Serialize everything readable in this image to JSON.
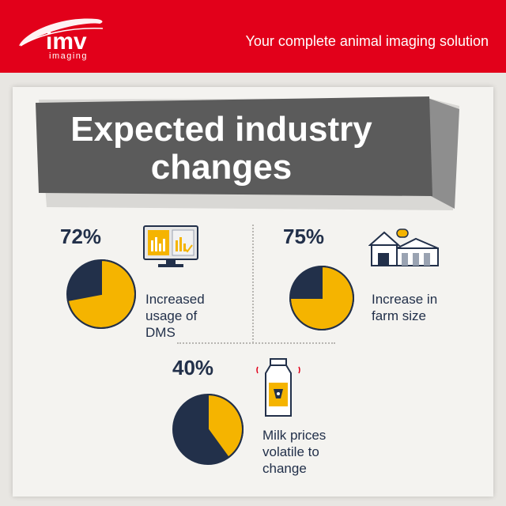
{
  "header": {
    "logo_text": "imv",
    "logo_subtext": "imaging",
    "tagline": "Your complete animal imaging solution"
  },
  "title": {
    "line1": "Expected industry",
    "line2": "changes"
  },
  "stats": [
    {
      "percent_label": "72%",
      "value": 72,
      "label_lines": [
        "Increased",
        "usage of",
        "DMS"
      ],
      "icon": "computer-monitor-icon"
    },
    {
      "percent_label": "75%",
      "value": 75,
      "label_lines": [
        "Increase in",
        "farm size"
      ],
      "icon": "farm-barn-icon"
    },
    {
      "percent_label": "40%",
      "value": 40,
      "label_lines": [
        "Milk prices",
        "volatile to",
        "change"
      ],
      "icon": "milk-bottle-icon"
    }
  ],
  "colors": {
    "brand_red": "#e2001a",
    "navy": "#22304a",
    "yellow": "#f5b400",
    "title_grey": "#5b5b5b"
  }
}
